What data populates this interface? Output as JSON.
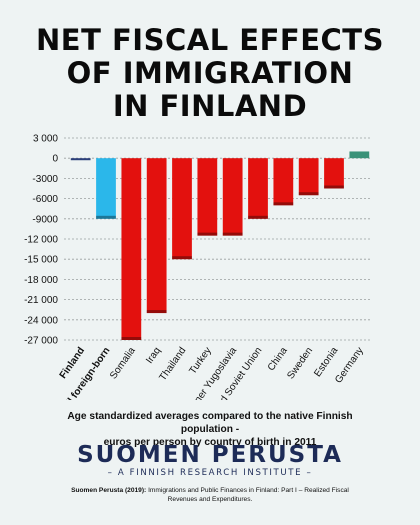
{
  "header": {
    "title_lines": [
      "NET FISCAL EFFECTS",
      "OF IMMIGRATION",
      "IN FINLAND"
    ]
  },
  "chart_data": {
    "type": "bar",
    "title": "NET FISCAL EFFECTS OF IMMIGRATION IN FINLAND",
    "categories": [
      "Finland",
      "All foreign-born",
      "Somalia",
      "Iraq",
      "Thailand",
      "Turkey",
      "Former Yugoslavia",
      "Formed Soviet Union",
      "China",
      "Sweden",
      "Estonia",
      "Germany"
    ],
    "bold_categories": [
      "Finland",
      "All foreign-born"
    ],
    "values": [
      -300,
      -9000,
      -27000,
      -23000,
      -15000,
      -11500,
      -11500,
      -9000,
      -7000,
      -5500,
      -4500,
      1000
    ],
    "colors": [
      "#2b3f7a",
      "#2bb7ea",
      "#e3110e",
      "#e3110e",
      "#e3110e",
      "#e3110e",
      "#e3110e",
      "#e3110e",
      "#e3110e",
      "#e3110e",
      "#e3110e",
      "#3a9278"
    ],
    "ylim": [
      -27000,
      3000
    ],
    "yticks": [
      3000,
      0,
      -3000,
      -6000,
      -9000,
      -12000,
      -15000,
      -18000,
      -21000,
      -24000,
      -27000
    ],
    "ytick_labels": [
      "3 000",
      "0",
      "-3000",
      "-6000",
      "-9000",
      "-12 000",
      "-15 000",
      "-18 000",
      "-21 000",
      "-24 000",
      "-27 000"
    ],
    "grid": true,
    "xlabel": "",
    "ylabel": ""
  },
  "caption": {
    "line1": "Age standardized averages compared to the native Finnish population -",
    "line2": "euros per person by country of birth in 2011"
  },
  "brand": {
    "name": "SUOMEN PERUSTA",
    "tagline": "– A FINNISH RESEARCH INSTITUTE –"
  },
  "source": {
    "author": "Suomen Perusta (2019):",
    "text": "Immigrations and Public Finances in Finland: Part I – Realized Fiscal Revenues and Expenditures."
  }
}
